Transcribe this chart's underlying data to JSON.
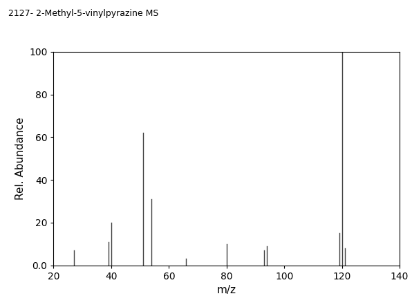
{
  "title": "2127- 2-Methyl-5-vinylpyrazine MS",
  "xlabel": "m/z",
  "ylabel": "Rel. Abundance",
  "xlim": [
    20,
    140
  ],
  "ylim": [
    0,
    100
  ],
  "xticks": [
    20,
    40,
    60,
    80,
    100,
    120,
    140
  ],
  "yticks": [
    0.0,
    20,
    40,
    60,
    80,
    100
  ],
  "ytick_labels": [
    "0.0",
    "20",
    "40",
    "60",
    "80",
    "100"
  ],
  "peaks": [
    [
      27,
      7
    ],
    [
      39,
      11
    ],
    [
      40,
      20
    ],
    [
      51,
      62
    ],
    [
      54,
      31
    ],
    [
      66,
      3
    ],
    [
      80,
      10
    ],
    [
      93,
      7
    ],
    [
      94,
      9
    ],
    [
      119,
      15
    ],
    [
      120,
      100
    ],
    [
      121,
      8
    ]
  ],
  "line_color": "#404040",
  "background_color": "#ffffff",
  "title_fontsize": 9,
  "axis_label_fontsize": 11,
  "tick_fontsize": 10,
  "line_width": 1.0
}
